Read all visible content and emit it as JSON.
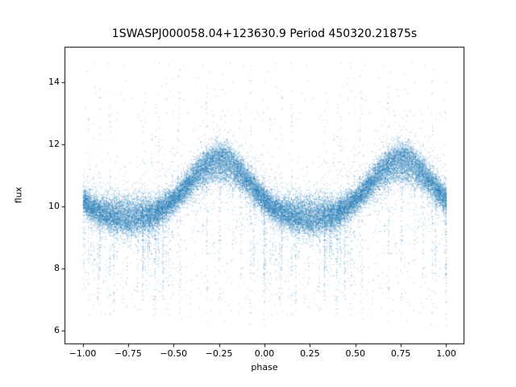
{
  "figure": {
    "background": "#ffffff"
  },
  "chart_data": {
    "type": "scatter",
    "title": "1SWASPJ000058.04+123630.9 Period 450320.21875s",
    "xlabel": "phase",
    "ylabel": "flux",
    "xlim": [
      -1.1,
      1.1
    ],
    "ylim": [
      5.55,
      15.15
    ],
    "xticks": [
      -1.0,
      -0.75,
      -0.5,
      -0.25,
      0.0,
      0.25,
      0.5,
      0.75,
      1.0
    ],
    "xtick_labels": [
      "−1.00",
      "−0.75",
      "−0.50",
      "−0.25",
      "0.00",
      "0.25",
      "0.50",
      "0.75",
      "1.00"
    ],
    "yticks": [
      6,
      8,
      10,
      12,
      14
    ],
    "ytick_labels": [
      "6",
      "8",
      "10",
      "12",
      "14"
    ],
    "grid": false,
    "legend": null,
    "point_color": "#1f77b4",
    "point_alpha": 0.45,
    "marker_size_px": 1,
    "n_points": 16000,
    "seed": 1234567,
    "duplication": "data for phase in [0,1] is plotted twice, at phase and phase-1, spanning [-1,1]",
    "mean_curve": {
      "phase": [
        -1.0,
        -0.75,
        -0.5,
        -0.25,
        0.0,
        0.25,
        0.5,
        0.75,
        1.0
      ],
      "flux": [
        10.2,
        9.55,
        10.2,
        11.65,
        10.2,
        9.55,
        10.2,
        11.65,
        10.2
      ]
    },
    "model": {
      "description": "phase-folded stellar light curve: sinusoidal band with maxima near phase -0.25/0.75 (flux ~11.7) and minima near -0.75/0.25 (flux ~9.6), with heavy vertical outlier streaks down to flux ~6 and sparse high outliers up to ~14.7",
      "mean_flux": 10.4,
      "primary_amplitude": 1.05,
      "phase_of_max": 0.75,
      "harmonic_amplitude": 0.18,
      "inner_band_fraction": 0.35,
      "inner_band_amp_scale": 0.55,
      "noise_sd": 0.22,
      "wide_noise_fraction": 0.08,
      "wide_noise_scale": 3,
      "outlier_low_fraction": 0.04,
      "outlier_low_min_flux": 6.0,
      "outlier_high_fraction": 0.012,
      "outlier_high_max_flux": 14.7,
      "n_streaks": 48,
      "streak_points_min": 15,
      "streak_points_max": 55
    }
  }
}
